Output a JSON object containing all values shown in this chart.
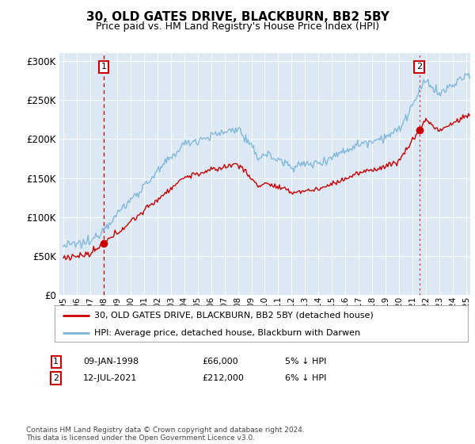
{
  "title": "30, OLD GATES DRIVE, BLACKBURN, BB2 5BY",
  "subtitle": "Price paid vs. HM Land Registry's House Price Index (HPI)",
  "bg_color": "#ffffff",
  "plot_bg_color": "#dce9f5",
  "hpi_color": "#7ab3d9",
  "price_color": "#cc0000",
  "legend_line1": "30, OLD GATES DRIVE, BLACKBURN, BB2 5BY (detached house)",
  "legend_line2": "HPI: Average price, detached house, Blackburn with Darwen",
  "table_row1": [
    "1",
    "09-JAN-1998",
    "£66,000",
    "5% ↓ HPI"
  ],
  "table_row2": [
    "2",
    "12-JUL-2021",
    "£212,000",
    "6% ↓ HPI"
  ],
  "footer": "Contains HM Land Registry data © Crown copyright and database right 2024.\nThis data is licensed under the Open Government Licence v3.0.",
  "ylim": [
    0,
    310000
  ],
  "yticks": [
    0,
    50000,
    100000,
    150000,
    200000,
    250000,
    300000
  ],
  "sale1_year": 1998,
  "sale1_month": 1,
  "sale1_price": 66000,
  "sale2_year": 2021,
  "sale2_month": 7,
  "sale2_price": 212000
}
